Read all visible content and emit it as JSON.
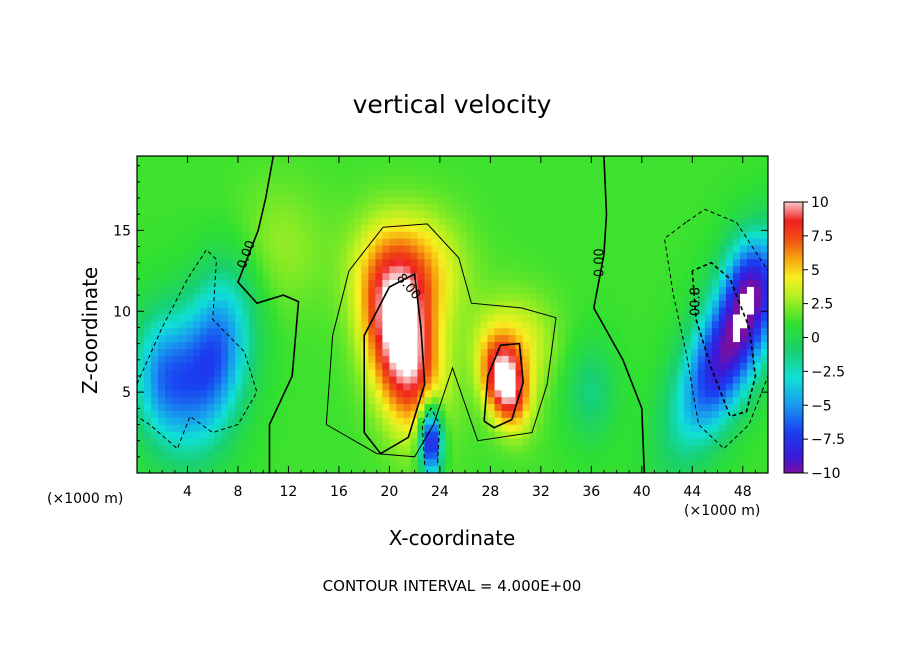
{
  "chart_data": {
    "type": "heatmap",
    "title": "vertical velocity",
    "xlabel": "X-coordinate",
    "ylabel": "Z-coordinate",
    "x_unit": "(×1000 m)",
    "footer": "CONTOUR INTERVAL = 4.000E+00",
    "xlim": [
      0,
      50
    ],
    "ylim": [
      0,
      19.6
    ],
    "x_ticks": [
      4,
      8,
      12,
      16,
      20,
      24,
      28,
      32,
      36,
      40,
      44,
      48
    ],
    "y_ticks": [
      5,
      10,
      15
    ],
    "colorbar": {
      "range": [
        -10,
        10
      ],
      "ticks": [
        10,
        7.5,
        5,
        2.5,
        0,
        -2.5,
        -5,
        -7.5,
        -10
      ],
      "tick_labels": [
        "10",
        "7.5",
        "5",
        "2.5",
        "0",
        "−2.5",
        "−5",
        "−7.5",
        "−10"
      ]
    },
    "contour_labels": [
      {
        "text": "0.00",
        "x": 8.7,
        "y": 13.5,
        "angle": -70
      },
      {
        "text": "8.00",
        "x": 21.5,
        "y": 11.5,
        "angle": 50
      },
      {
        "text": "0.00",
        "x": 36.7,
        "y": 13.0,
        "angle": -90
      },
      {
        "text": "00.8",
        "x": 44.3,
        "y": 10.6,
        "angle": -90
      }
    ],
    "features": [
      {
        "x": 21.0,
        "z": 7.3,
        "w": 10.0,
        "comment": "updraft core"
      },
      {
        "x": 29.2,
        "z": 5.3,
        "w": 9.0,
        "comment": "updraft"
      },
      {
        "x": 23.3,
        "z": 2.0,
        "w": -9.0,
        "comment": "downdraft"
      },
      {
        "x": 6.2,
        "z": 6.0,
        "w": -8.5,
        "comment": "downdraft"
      },
      {
        "x": 47.0,
        "z": 7.5,
        "w": -10.0,
        "comment": "downdraft core"
      }
    ]
  }
}
